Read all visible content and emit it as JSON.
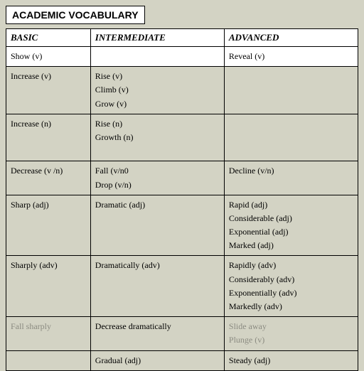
{
  "title": "ACADEMIC VOCABULARY",
  "columns": [
    "BASIC",
    "INTERMEDIATE",
    "ADVANCED"
  ],
  "rows": [
    {
      "style": "white",
      "cells": [
        [
          "Show (v)"
        ],
        [],
        [
          "Reveal  (v)"
        ]
      ]
    },
    {
      "style": "tan",
      "cells": [
        [
          "Increase (v)"
        ],
        [
          "Rise (v)",
          "Climb (v)",
          "Grow (v)"
        ],
        []
      ]
    },
    {
      "style": "tan",
      "cells": [
        [
          "Increase (n)"
        ],
        [
          "Rise (n)",
          "Growth (n)",
          ""
        ],
        []
      ]
    },
    {
      "style": "tan",
      "cells": [
        [
          "Decrease (v /n)"
        ],
        [
          "Fall (v/n0",
          "Drop (v/n)"
        ],
        [
          "Decline (v/n)"
        ]
      ]
    },
    {
      "style": "tan",
      "cells": [
        [
          "Sharp (adj)"
        ],
        [
          "Dramatic (adj)"
        ],
        [
          "Rapid (adj)",
          "Considerable (adj)",
          "Exponential (adj)",
          "Marked (adj)"
        ]
      ]
    },
    {
      "style": "tan",
      "cells": [
        [
          "Sharply (adv)"
        ],
        [
          "Dramatically (adv)"
        ],
        [
          "Rapidly (adv)",
          "Considerably (adv)",
          "Exponentially (adv)",
          "Markedly (adv)"
        ]
      ]
    },
    {
      "style": "tan",
      "faded_cols": [
        0,
        2
      ],
      "cells": [
        [
          "Fall sharply"
        ],
        [
          "Decrease dramatically"
        ],
        [
          "Slide away",
          "Plunge (v)"
        ]
      ]
    },
    {
      "style": "tan",
      "cells": [
        [
          ""
        ],
        [
          "Gradual (adj)"
        ],
        [
          "Steady (adj)"
        ]
      ]
    }
  ],
  "colors": {
    "page_bg": "#d3d3c4",
    "cell_white": "#ffffff",
    "cell_tan": "#d3d3c4",
    "border": "#000000",
    "text": "#000000",
    "faded_text": "rgba(0,0,0,0.35)"
  }
}
